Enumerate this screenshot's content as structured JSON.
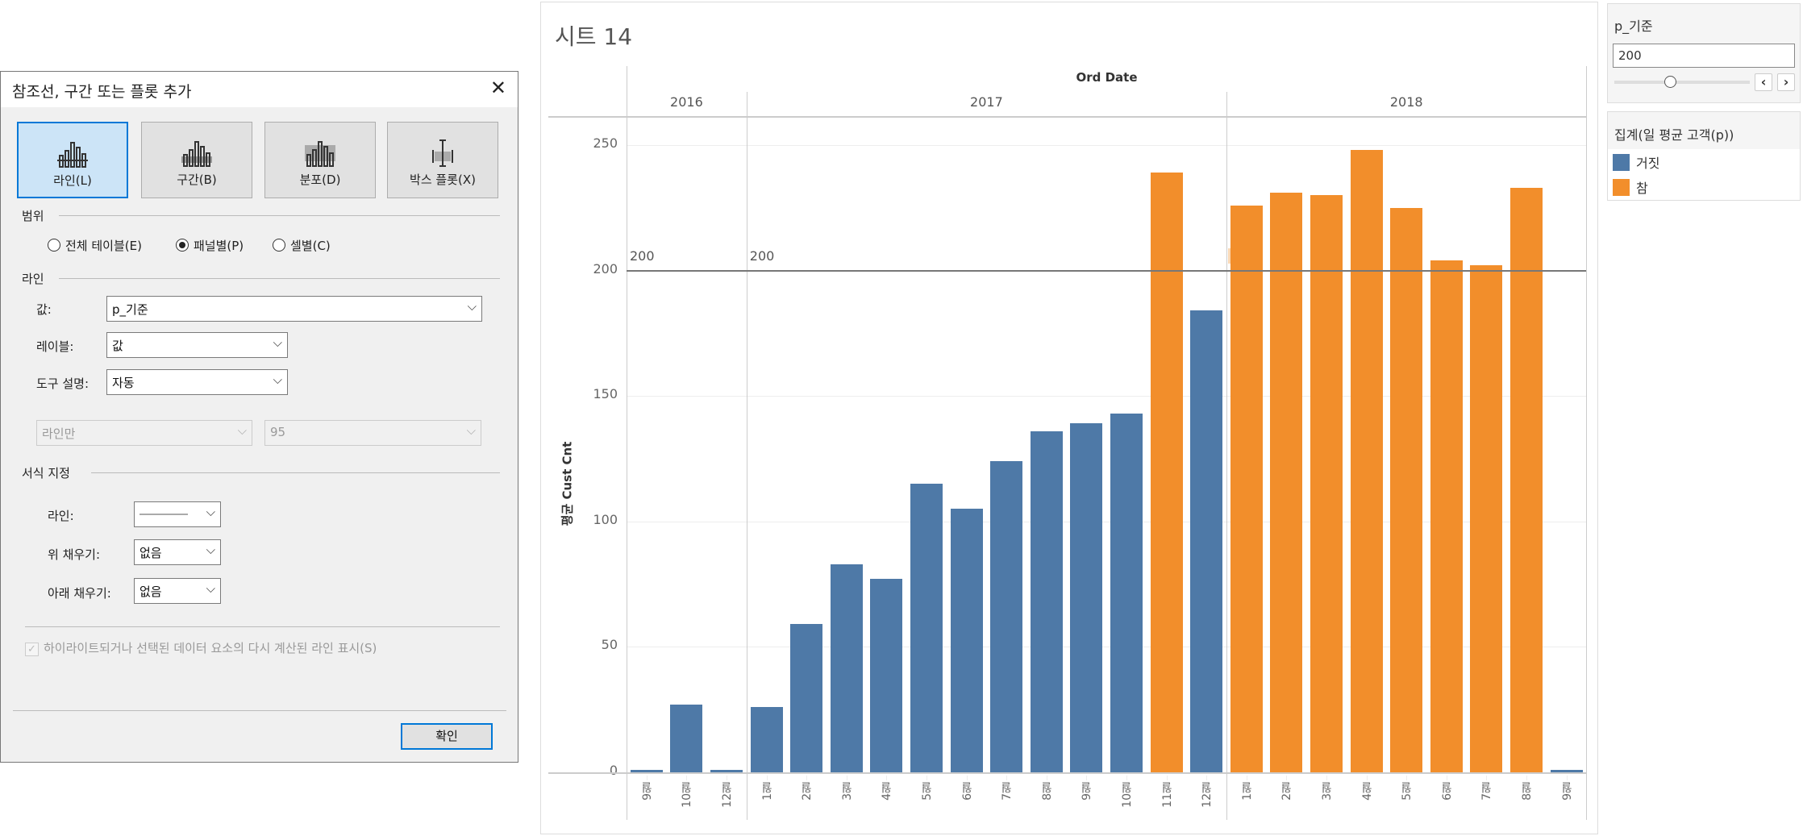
{
  "dialog": {
    "title": "참조선, 구간 또는 플롯 추가",
    "close_icon": "close-icon",
    "types": [
      {
        "label": "라인(L)",
        "icon": "reference-line-icon",
        "selected": true
      },
      {
        "label": "구간(B)",
        "icon": "reference-band-icon",
        "selected": false
      },
      {
        "label": "분포(D)",
        "icon": "distribution-icon",
        "selected": false
      },
      {
        "label": "박스 플롯(X)",
        "icon": "box-plot-icon",
        "selected": false
      }
    ],
    "scope": {
      "title": "범위",
      "options": [
        {
          "label": "전체 테이블(E)",
          "selected": false
        },
        {
          "label": "패널별(P)",
          "selected": true
        },
        {
          "label": "셀별(C)",
          "selected": false
        }
      ]
    },
    "line": {
      "title": "라인",
      "value_label": "값:",
      "value": "p_기준",
      "label_label": "레이블:",
      "label": "값",
      "tooltip_label": "도구 설명:",
      "tooltip": "자동",
      "conf_type": "라인만",
      "conf_level": "95"
    },
    "format": {
      "title": "서식 지정",
      "line_label": "라인:",
      "fill_above_label": "위 채우기:",
      "fill_above": "없음",
      "fill_below_label": "아래 채우기:",
      "fill_below": "없음"
    },
    "recalc_checkbox": {
      "label": "하이라이트되거나 선택된 데이터 요소의 다시 계산된 라인 표시(S)",
      "checked": true,
      "disabled": true
    },
    "ok": "확인"
  },
  "sheet": {
    "title": "시트 14",
    "column_header": "Ord Date"
  },
  "chart_data": {
    "type": "bar",
    "ylabel": "평균 Cust Cnt",
    "ylim": [
      0,
      250
    ],
    "yticks": [
      "0",
      "50",
      "100",
      "150",
      "200",
      "250"
    ],
    "grid": true,
    "panes": [
      {
        "year": "2016",
        "categories": [
          "9월",
          "10월",
          "12월"
        ],
        "values": [
          1,
          27,
          1
        ],
        "flag": [
          "거짓",
          "거짓",
          "거짓"
        ]
      },
      {
        "year": "2017",
        "categories": [
          "1월",
          "2월",
          "3월",
          "4월",
          "5월",
          "6월",
          "7월",
          "8월",
          "9월",
          "10월",
          "11월",
          "12월"
        ],
        "values": [
          26,
          59,
          83,
          77,
          115,
          105,
          124,
          136,
          139,
          143,
          239,
          184
        ],
        "flag": [
          "거짓",
          "거짓",
          "거짓",
          "거짓",
          "거짓",
          "거짓",
          "거짓",
          "거짓",
          "거짓",
          "거짓",
          "참",
          "거짓"
        ]
      },
      {
        "year": "2018",
        "categories": [
          "1월",
          "2월",
          "3월",
          "4월",
          "5월",
          "6월",
          "7월",
          "8월",
          "9월"
        ],
        "values": [
          226,
          231,
          230,
          248,
          225,
          204,
          202,
          233,
          1
        ],
        "flag": [
          "참",
          "참",
          "참",
          "참",
          "참",
          "참",
          "참",
          "참",
          "거짓"
        ]
      }
    ],
    "reference_line": {
      "value": 200,
      "label": "200"
    },
    "colors": {
      "거짓": "#4e79a7",
      "참": "#f28e2b"
    }
  },
  "parameter": {
    "title": "p_기준",
    "value": "200",
    "slider_fraction": 0.41
  },
  "legend": {
    "title": "집계(일 평균 고객(p))",
    "items": [
      {
        "label": "거짓",
        "color": "#4e79a7"
      },
      {
        "label": "참",
        "color": "#f28e2b"
      }
    ]
  }
}
